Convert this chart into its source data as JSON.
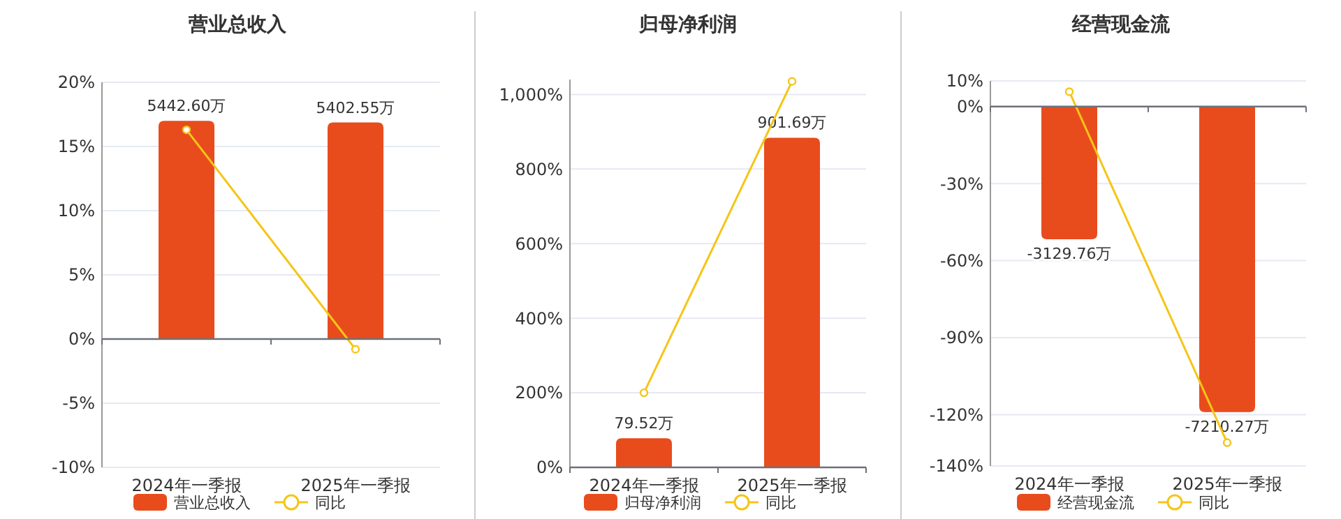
{
  "chart_data": [
    {
      "type": "bar",
      "title": "营业总收入",
      "categories": [
        "2024年一季报",
        "2025年一季报"
      ],
      "legend": "bottom",
      "grid": "y",
      "ylim": [
        -10,
        20
      ],
      "yticks": [
        {
          "value": -10,
          "label": "-10%"
        },
        {
          "value": -5,
          "label": "-5%"
        },
        {
          "value": 0,
          "label": "0%"
        },
        {
          "value": 5,
          "label": "5%"
        },
        {
          "value": 10,
          "label": "10%"
        },
        {
          "value": 15,
          "label": "15%"
        },
        {
          "value": 20,
          "label": "20%"
        }
      ],
      "series": [
        {
          "name": "营业总收入",
          "axis": "y2",
          "color": "#e84c1d",
          "values": [
            5442.6,
            5402.55
          ],
          "value_labels": [
            "5442.60万",
            "5402.55万"
          ]
        },
        {
          "name": "同比",
          "type": "line",
          "color": "#f5c518",
          "marker": "circle",
          "values": [
            16.3,
            -0.8
          ]
        }
      ]
    },
    {
      "type": "bar",
      "title": "归母净利润",
      "categories": [
        "2024年一季报",
        "2025年一季报"
      ],
      "legend": "bottom",
      "grid": "y",
      "ylim": [
        0,
        1040
      ],
      "yticks": [
        {
          "value": 0,
          "label": "0%"
        },
        {
          "value": 200,
          "label": "200%"
        },
        {
          "value": 400,
          "label": "400%"
        },
        {
          "value": 600,
          "label": "600%"
        },
        {
          "value": 800,
          "label": "800%"
        },
        {
          "value": 1000,
          "label": "1,000%"
        }
      ],
      "series": [
        {
          "name": "归母净利润",
          "axis": "y2",
          "color": "#e84c1d",
          "values": [
            79.52,
            901.69
          ],
          "value_labels": [
            "79.52万",
            "901.69万"
          ]
        },
        {
          "name": "同比",
          "type": "line",
          "color": "#f5c518",
          "marker": "circle",
          "values": [
            200,
            1035
          ]
        }
      ]
    },
    {
      "type": "bar",
      "title": "经营现金流",
      "categories": [
        "2024年一季报",
        "2025年一季报"
      ],
      "legend": "bottom",
      "grid": "y",
      "ylim": [
        -140,
        10
      ],
      "yticks": [
        {
          "value": -140,
          "label": "-140%"
        },
        {
          "value": -120,
          "label": "-120%"
        },
        {
          "value": -90,
          "label": "-90%"
        },
        {
          "value": -60,
          "label": "-60%"
        },
        {
          "value": -30,
          "label": "-30%"
        },
        {
          "value": 0,
          "label": "0%"
        },
        {
          "value": 10,
          "label": "10%"
        }
      ],
      "series": [
        {
          "name": "经营现金流",
          "axis": "y2",
          "color": "#e84c1d",
          "values": [
            -3129.76,
            -7210.27
          ],
          "value_labels": [
            "-3129.76万",
            "-7210.27万"
          ]
        },
        {
          "name": "同比",
          "type": "line",
          "color": "#f5c518",
          "marker": "circle",
          "values": [
            5.8,
            -130.9
          ]
        }
      ]
    }
  ]
}
